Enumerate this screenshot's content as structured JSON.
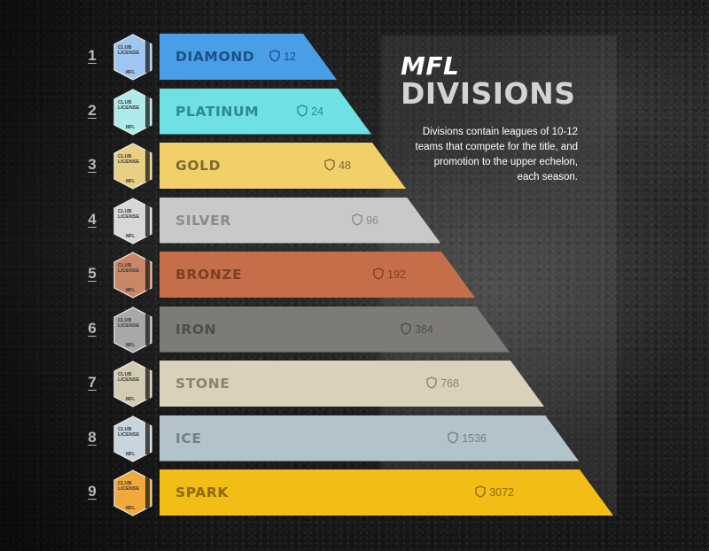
{
  "header": {
    "brand": "MFL",
    "title": "DIVISIONS",
    "description": "Divisions contain leagues of 10-12 teams that compete for the title, and promotion to the upper echelon, each season."
  },
  "badge": {
    "line1": "CLUB",
    "line2": "LICENSE",
    "footer": "MFL"
  },
  "divisions": [
    {
      "rank": "1",
      "name": "DIAMOND",
      "leagues": "12",
      "color": "#4a9ee6",
      "text_color": "#1f4f86",
      "badge_color": "#9fc6ee"
    },
    {
      "rank": "2",
      "name": "PLATINUM",
      "leagues": "24",
      "color": "#6fe0e6",
      "text_color": "#2a8a92",
      "badge_color": "#aeeaea"
    },
    {
      "rank": "3",
      "name": "GOLD",
      "leagues": "48",
      "color": "#f1d06a",
      "text_color": "#7d6a30",
      "badge_color": "#e8cf84"
    },
    {
      "rank": "4",
      "name": "SILVER",
      "leagues": "96",
      "color": "#c9c9c9",
      "text_color": "#8a8a8a",
      "badge_color": "#d7d7d7"
    },
    {
      "rank": "5",
      "name": "BRONZE",
      "leagues": "192",
      "color": "#c56f4a",
      "text_color": "#7f3e24",
      "badge_color": "#c98766"
    },
    {
      "rank": "6",
      "name": "IRON",
      "leagues": "384",
      "color": "#7d7b78",
      "text_color": "#4f4d4b",
      "badge_color": "#a8a8a8"
    },
    {
      "rank": "7",
      "name": "STONE",
      "leagues": "768",
      "color": "#d9d1b9",
      "text_color": "#8b836c",
      "badge_color": "#d4ccb2"
    },
    {
      "rank": "8",
      "name": "ICE",
      "leagues": "1536",
      "color": "#b3c3cb",
      "text_color": "#6f8089",
      "badge_color": "#c6d5de"
    },
    {
      "rank": "9",
      "name": "SPARK",
      "leagues": "3072",
      "color": "#f2bd14",
      "text_color": "#8a6a08",
      "badge_color": "#f0a93a"
    }
  ]
}
